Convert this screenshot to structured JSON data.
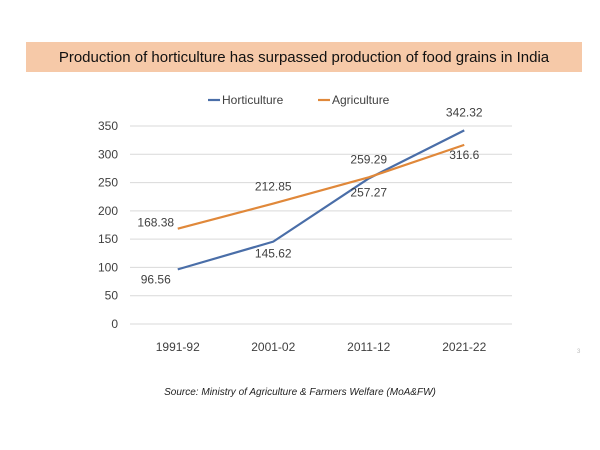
{
  "banner": {
    "title": "Production of horticulture has surpassed production of food grains in India"
  },
  "source": "Source: Ministry of Agriculture & Farmers Welfare (MoA&FW)",
  "corner_mark": "3",
  "colors": {
    "horticulture": "#4a6ea8",
    "agriculture": "#e0883a",
    "banner": "#f6c9a8",
    "grid": "#d9d9d9"
  },
  "chart_data": {
    "type": "line",
    "title": "",
    "xlabel": "",
    "ylabel": "",
    "categories": [
      "1991-92",
      "2001-02",
      "2011-12",
      "2021-22"
    ],
    "ylim": [
      0,
      350
    ],
    "yticks": [
      0,
      50,
      100,
      150,
      200,
      250,
      300,
      350
    ],
    "grid": true,
    "legend_position": "top",
    "series": [
      {
        "name": "Horticulture",
        "values": [
          96.56,
          145.62,
          257.27,
          342.32
        ],
        "color": "#4a6ea8"
      },
      {
        "name": "Agriculture",
        "values": [
          168.38,
          212.85,
          259.29,
          316.6
        ],
        "color": "#e0883a"
      }
    ],
    "data_labels": [
      [
        "96.56",
        "145.62",
        "257.27",
        "342.32"
      ],
      [
        "168.38",
        "212.85",
        "259.29",
        "316.6"
      ]
    ]
  }
}
